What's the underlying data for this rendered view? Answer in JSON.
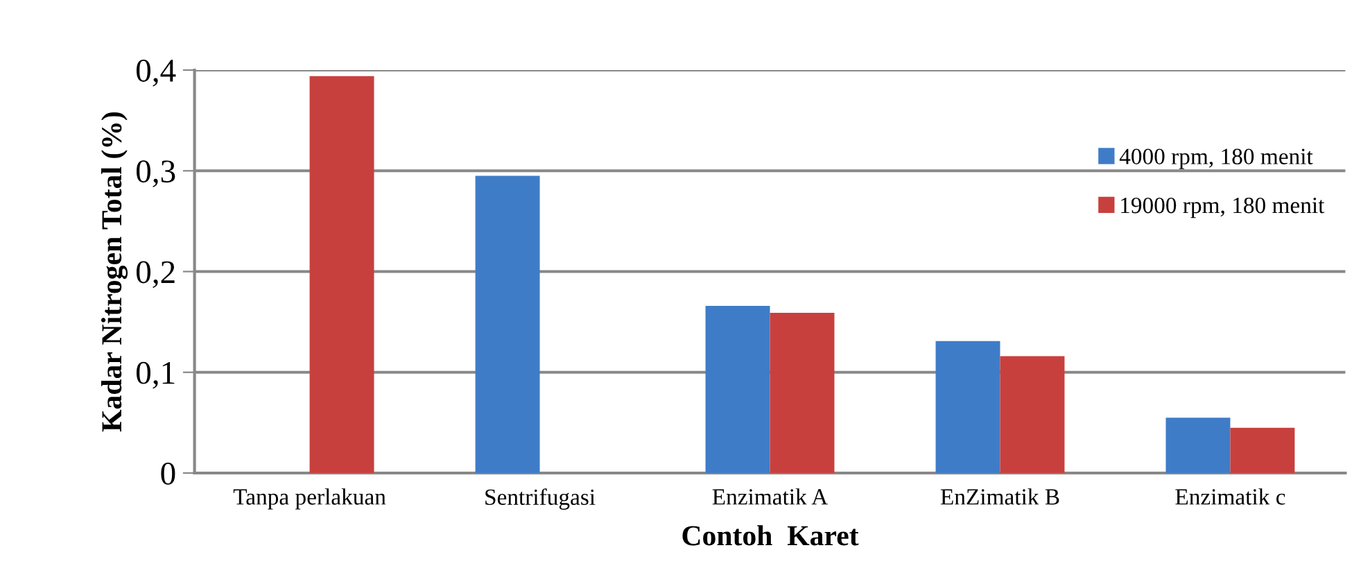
{
  "chart_data": {
    "type": "bar",
    "xlabel": "Contoh  Karet",
    "ylabel": "Kadar Nitrogen Total (%)",
    "categories": [
      "Tanpa perlakuan",
      "Sentrifugasi",
      "Enzimatik A",
      "EnZimatik B",
      "Enzimatik c"
    ],
    "series": [
      {
        "name": "4000 rpm, 180 menit",
        "color": "#3f7cc8",
        "values": [
          null,
          0.295,
          0.166,
          0.131,
          0.055
        ]
      },
      {
        "name": "19000 rpm, 180 menit",
        "color": "#c8403d",
        "values": [
          0.394,
          null,
          0.159,
          0.116,
          0.045
        ]
      }
    ],
    "ylim": [
      0,
      0.4
    ],
    "yticks": [
      {
        "value": 0,
        "label": "0"
      },
      {
        "value": 0.1,
        "label": "0,1"
      },
      {
        "value": 0.2,
        "label": "0,2"
      },
      {
        "value": 0.3,
        "label": "0,3"
      },
      {
        "value": 0.4,
        "label": "0,4"
      }
    ],
    "grid": "y",
    "legend": "right"
  }
}
